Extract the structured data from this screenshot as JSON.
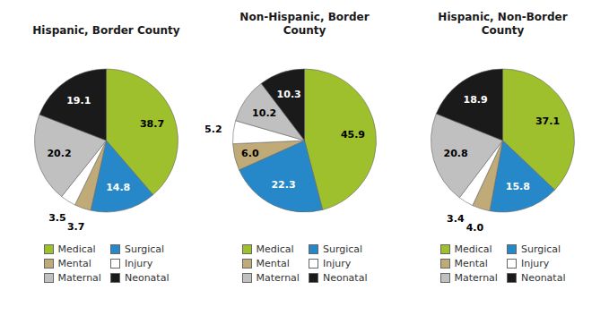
{
  "chart_data": [
    {
      "type": "pie",
      "title": "Hispanic, Border County",
      "categories": [
        "Medical",
        "Surgical",
        "Mental",
        "Injury",
        "Maternal",
        "Neonatal"
      ],
      "values": [
        38.7,
        14.8,
        3.7,
        3.5,
        20.2,
        19.1
      ],
      "value_labels": [
        "38.7",
        "14.8",
        "3.7",
        "3.5",
        "20.2",
        "19.1"
      ],
      "colors": [
        "#9dc02c",
        "#2688c8",
        "#c0aa78",
        "#ffffff",
        "#c0c0c0",
        "#1a1a1a"
      ],
      "data_labels": true,
      "legend": "bottom"
    },
    {
      "type": "pie",
      "title": "Non-Hispanic, Border\nCounty",
      "categories": [
        "Medical",
        "Surgical",
        "Mental",
        "Injury",
        "Maternal",
        "Neonatal"
      ],
      "values": [
        45.9,
        22.3,
        6.0,
        5.2,
        10.2,
        10.3
      ],
      "value_labels": [
        "45.9",
        "22.3",
        "6.0",
        "5.2",
        "10.2",
        "10.3"
      ],
      "colors": [
        "#9dc02c",
        "#2688c8",
        "#c0aa78",
        "#ffffff",
        "#c0c0c0",
        "#1a1a1a"
      ],
      "data_labels": true,
      "legend": "bottom"
    },
    {
      "type": "pie",
      "title": "Hispanic, Non-Border\nCounty",
      "categories": [
        "Medical",
        "Surgical",
        "Mental",
        "Injury",
        "Maternal",
        "Neonatal"
      ],
      "values": [
        37.1,
        15.8,
        4.0,
        3.4,
        20.8,
        18.9
      ],
      "value_labels": [
        "37.1",
        "15.8",
        "4.0",
        "3.4",
        "20.8",
        "18.9"
      ],
      "colors": [
        "#9dc02c",
        "#2688c8",
        "#c0aa78",
        "#ffffff",
        "#c0c0c0",
        "#1a1a1a"
      ],
      "data_labels": true,
      "legend": "bottom"
    }
  ]
}
